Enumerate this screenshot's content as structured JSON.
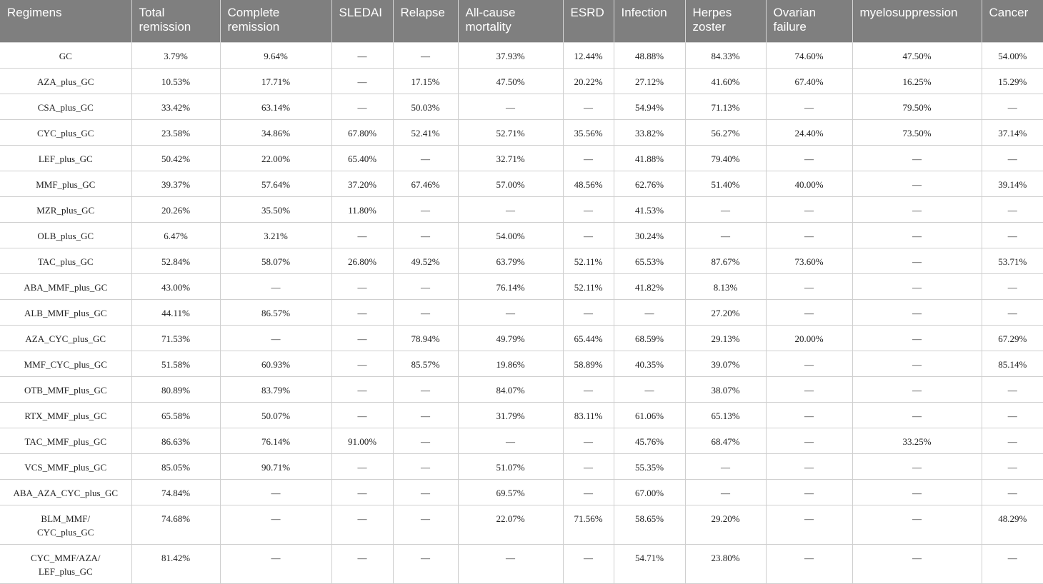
{
  "table": {
    "headers": [
      "Regimens",
      "Total\nremission",
      "Complete\nremission",
      "SLEDAI",
      "Relapse",
      "All-cause\nmortality",
      "ESRD",
      "Infection",
      "Herpes\nzoster",
      "Ovarian\nfailure",
      "myelosuppression",
      "Cancer"
    ],
    "rows": [
      [
        "GC",
        "3.79%",
        "9.64%",
        "—",
        "—",
        "37.93%",
        "12.44%",
        "48.88%",
        "84.33%",
        "74.60%",
        "47.50%",
        "54.00%"
      ],
      [
        "AZA_plus_GC",
        "10.53%",
        "17.71%",
        "—",
        "17.15%",
        "47.50%",
        "20.22%",
        "27.12%",
        "41.60%",
        "67.40%",
        "16.25%",
        "15.29%"
      ],
      [
        "CSA_plus_GC",
        "33.42%",
        "63.14%",
        "—",
        "50.03%",
        "—",
        "—",
        "54.94%",
        "71.13%",
        "—",
        "79.50%",
        "—"
      ],
      [
        "CYC_plus_GC",
        "23.58%",
        "34.86%",
        "67.80%",
        "52.41%",
        "52.71%",
        "35.56%",
        "33.82%",
        "56.27%",
        "24.40%",
        "73.50%",
        "37.14%"
      ],
      [
        "LEF_plus_GC",
        "50.42%",
        "22.00%",
        "65.40%",
        "—",
        "32.71%",
        "—",
        "41.88%",
        "79.40%",
        "—",
        "—",
        "—"
      ],
      [
        "MMF_plus_GC",
        "39.37%",
        "57.64%",
        "37.20%",
        "67.46%",
        "57.00%",
        "48.56%",
        "62.76%",
        "51.40%",
        "40.00%",
        "—",
        "39.14%"
      ],
      [
        "MZR_plus_GC",
        "20.26%",
        "35.50%",
        "11.80%",
        "—",
        "—",
        "—",
        "41.53%",
        "—",
        "—",
        "—",
        "—"
      ],
      [
        "OLB_plus_GC",
        "6.47%",
        "3.21%",
        "—",
        "—",
        "54.00%",
        "—",
        "30.24%",
        "—",
        "—",
        "—",
        "—"
      ],
      [
        "TAC_plus_GC",
        "52.84%",
        "58.07%",
        "26.80%",
        "49.52%",
        "63.79%",
        "52.11%",
        "65.53%",
        "87.67%",
        "73.60%",
        "—",
        "53.71%"
      ],
      [
        "ABA_MMF_plus_GC",
        "43.00%",
        "—",
        "—",
        "—",
        "76.14%",
        "52.11%",
        "41.82%",
        "8.13%",
        "—",
        "—",
        "—"
      ],
      [
        "ALB_MMF_plus_GC",
        "44.11%",
        "86.57%",
        "—",
        "—",
        "—",
        "—",
        "—",
        "27.20%",
        "—",
        "—",
        "—"
      ],
      [
        "AZA_CYC_plus_GC",
        "71.53%",
        "—",
        "—",
        "78.94%",
        "49.79%",
        "65.44%",
        "68.59%",
        "29.13%",
        "20.00%",
        "—",
        "67.29%"
      ],
      [
        "MMF_CYC_plus_GC",
        "51.58%",
        "60.93%",
        "—",
        "85.57%",
        "19.86%",
        "58.89%",
        "40.35%",
        "39.07%",
        "—",
        "—",
        "85.14%"
      ],
      [
        "OTB_MMF_plus_GC",
        "80.89%",
        "83.79%",
        "—",
        "—",
        "84.07%",
        "—",
        "—",
        "38.07%",
        "—",
        "—",
        "—"
      ],
      [
        "RTX_MMF_plus_GC",
        "65.58%",
        "50.07%",
        "—",
        "—",
        "31.79%",
        "83.11%",
        "61.06%",
        "65.13%",
        "—",
        "—",
        "—"
      ],
      [
        "TAC_MMF_plus_GC",
        "86.63%",
        "76.14%",
        "91.00%",
        "—",
        "—",
        "—",
        "45.76%",
        "68.47%",
        "—",
        "33.25%",
        "—"
      ],
      [
        "VCS_MMF_plus_GC",
        "85.05%",
        "90.71%",
        "—",
        "—",
        "51.07%",
        "—",
        "55.35%",
        "—",
        "—",
        "—",
        "—"
      ],
      [
        "ABA_AZA_CYC_plus_GC",
        "74.84%",
        "—",
        "—",
        "—",
        "69.57%",
        "—",
        "67.00%",
        "—",
        "—",
        "—",
        "—"
      ],
      [
        "BLM_MMF/\nCYC_plus_GC",
        "74.68%",
        "—",
        "—",
        "—",
        "22.07%",
        "71.56%",
        "58.65%",
        "29.20%",
        "—",
        "—",
        "48.29%"
      ],
      [
        "CYC_MMF/AZA/\nLEF_plus_GC",
        "81.42%",
        "—",
        "—",
        "—",
        "—",
        "—",
        "54.71%",
        "23.80%",
        "—",
        "—",
        "—"
      ]
    ]
  }
}
